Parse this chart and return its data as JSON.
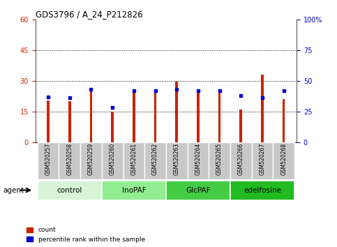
{
  "title": "GDS3796 / A_24_P212826",
  "samples": [
    "GSM520257",
    "GSM520258",
    "GSM520259",
    "GSM520260",
    "GSM520261",
    "GSM520262",
    "GSM520263",
    "GSM520264",
    "GSM520265",
    "GSM520266",
    "GSM520267",
    "GSM520268"
  ],
  "count_values": [
    20.5,
    20.0,
    25.5,
    15.0,
    24.5,
    24.5,
    29.5,
    24.5,
    24.5,
    16.0,
    33.0,
    21.0
  ],
  "percentile_values": [
    37,
    36,
    43,
    28,
    42,
    42,
    43,
    42,
    42,
    38,
    36,
    42
  ],
  "bar_color": "#cc2200",
  "dot_color": "#0000cc",
  "left_ylim": [
    0,
    60
  ],
  "right_ylim": [
    0,
    100
  ],
  "left_yticks": [
    0,
    15,
    30,
    45,
    60
  ],
  "right_yticks": [
    0,
    25,
    50,
    75,
    100
  ],
  "right_yticklabels": [
    "0",
    "25",
    "50",
    "75",
    "100%"
  ],
  "groups": [
    {
      "label": "control",
      "indices": [
        0,
        1,
        2
      ],
      "color": "#d6f5d6"
    },
    {
      "label": "InoPAF",
      "indices": [
        3,
        4,
        5
      ],
      "color": "#90ee90"
    },
    {
      "label": "GlcPAF",
      "indices": [
        6,
        7,
        8
      ],
      "color": "#44cc44"
    },
    {
      "label": "edelfosine",
      "indices": [
        9,
        10,
        11
      ],
      "color": "#22bb22"
    }
  ],
  "agent_label": "agent",
  "legend_count_label": "count",
  "legend_percentile_label": "percentile rank within the sample",
  "bar_width": 0.12,
  "left_ylabel_color": "#cc2200",
  "right_ylabel_color": "#0000cc",
  "tick_area_bg": "#c8c8c8"
}
